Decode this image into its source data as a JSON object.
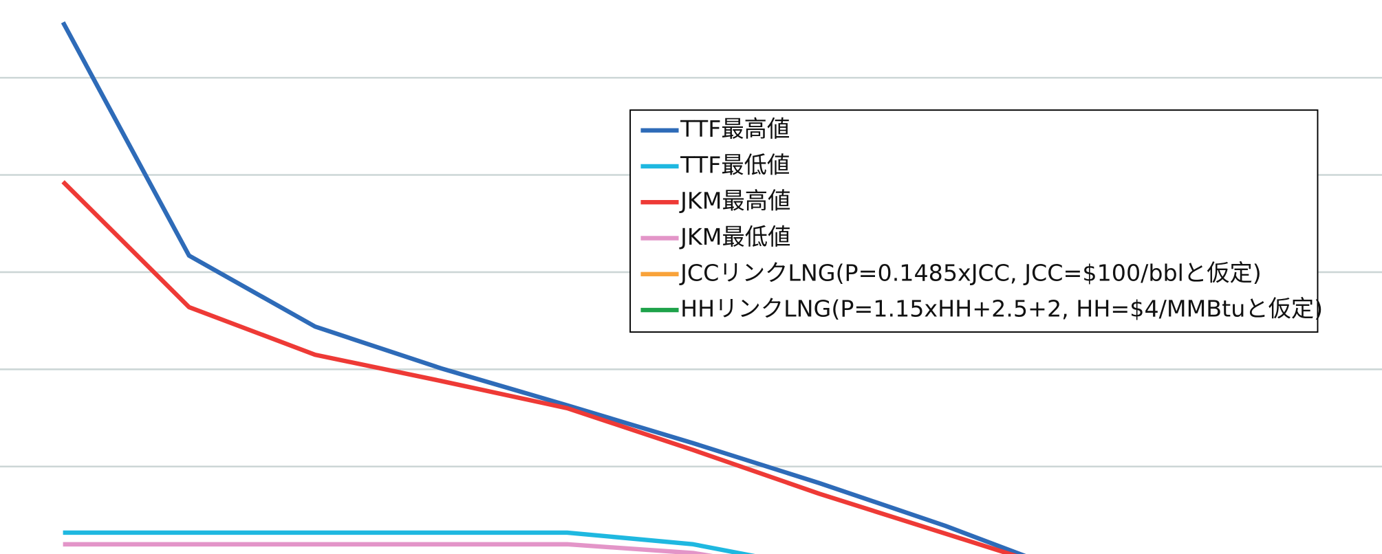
{
  "chart_data": {
    "type": "line",
    "categories": [
      null,
      null,
      null,
      null,
      null,
      null,
      null,
      null,
      null
    ],
    "series": [
      {
        "name": "TTF最高値",
        "color": "#2e6bb8",
        "values": [
          55.7,
          31.7,
          24.4,
          20.1,
          16.3,
          12.4,
          8.3,
          3.9,
          -1.0
        ]
      },
      {
        "name": "TTF最低値",
        "color": "#1fb8e0",
        "values": [
          3.2,
          3.2,
          3.2,
          3.2,
          3.2,
          2.0,
          -0.5,
          null,
          null
        ]
      },
      {
        "name": "JKM最高値",
        "color": "#ee3a36",
        "values": [
          39.3,
          26.4,
          21.5,
          18.8,
          16.0,
          11.7,
          7.2,
          3.1,
          -1.0
        ]
      },
      {
        "name": "JKM最低値",
        "color": "#e395c8",
        "values": [
          2.0,
          2.0,
          2.0,
          2.0,
          2.0,
          1.1,
          -1.0,
          null,
          null
        ]
      },
      {
        "name": "JCCリンクLNG(P=0.1485xJCC, JCC=$100/bblと仮定)",
        "color": "#f9a33a",
        "values": [
          null,
          null,
          null,
          null,
          null,
          null,
          null,
          null,
          null
        ]
      },
      {
        "name": "HHリンクLNG(P=1.15xHH+2.5+2, HH=$4/MMBtuと仮定)",
        "color": "#1ea24a",
        "values": [
          null,
          null,
          null,
          null,
          null,
          null,
          null,
          null,
          null
        ]
      }
    ],
    "ylim": [
      1,
      58
    ],
    "yticks": [
      10,
      20,
      30,
      40,
      50
    ],
    "grid": true
  }
}
